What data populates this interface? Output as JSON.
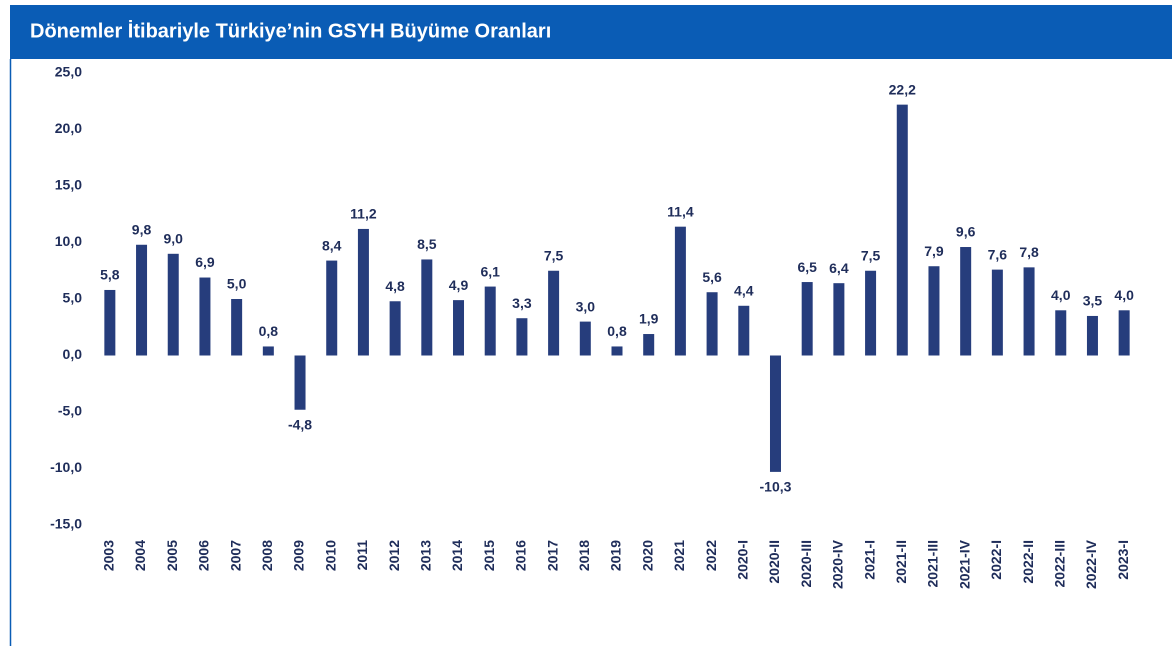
{
  "chart_data": {
    "type": "bar",
    "title": "Dönemler İtibariyle Türkiye’nin GSYH Büyüme Oranları",
    "categories": [
      "2003",
      "2004",
      "2005",
      "2006",
      "2007",
      "2008",
      "2009",
      "2010",
      "2011",
      "2012",
      "2013",
      "2014",
      "2015",
      "2016",
      "2017",
      "2018",
      "2019",
      "2020",
      "2021",
      "2022",
      "2020-I",
      "2020-II",
      "2020-III",
      "2020-IV",
      "2021-I",
      "2021-II",
      "2021-III",
      "2021-IV",
      "2022-I",
      "2022-II",
      "2022-III",
      "2022-IV",
      "2023-I"
    ],
    "values": [
      5.8,
      9.8,
      9.0,
      6.9,
      5.0,
      0.8,
      -4.8,
      8.4,
      11.2,
      4.8,
      8.5,
      4.9,
      6.1,
      3.3,
      7.5,
      3.0,
      0.8,
      1.9,
      11.4,
      5.6,
      4.4,
      -10.3,
      6.5,
      6.4,
      7.5,
      22.2,
      7.9,
      9.6,
      7.6,
      7.8,
      4.0,
      3.5,
      4.0
    ],
    "value_labels": [
      "5,8",
      "9,8",
      "9,0",
      "6,9",
      "5,0",
      "0,8",
      "-4,8",
      "8,4",
      "11,2",
      "4,8",
      "8,5",
      "4,9",
      "6,1",
      "3,3",
      "7,5",
      "3,0",
      "0,8",
      "1,9",
      "11,4",
      "5,6",
      "4,4",
      "-10,3",
      "6,5",
      "6,4",
      "7,5",
      "22,2",
      "7,9",
      "9,6",
      "7,6",
      "7,8",
      "4,0",
      "3,5",
      "4,0"
    ],
    "color": "#263d7c",
    "ylim": [
      -15,
      25
    ],
    "yticks": [
      {
        "value": -15,
        "label": "-15,0"
      },
      {
        "value": -10,
        "label": "-10,0"
      },
      {
        "value": -5,
        "label": "-5,0"
      },
      {
        "value": 0,
        "label": "0,0"
      },
      {
        "value": 5,
        "label": "5,0"
      },
      {
        "value": 10,
        "label": "10,0"
      },
      {
        "value": 15,
        "label": "15,0"
      },
      {
        "value": 20,
        "label": "20,0"
      },
      {
        "value": 25,
        "label": "25,0"
      }
    ],
    "grid": false
  }
}
